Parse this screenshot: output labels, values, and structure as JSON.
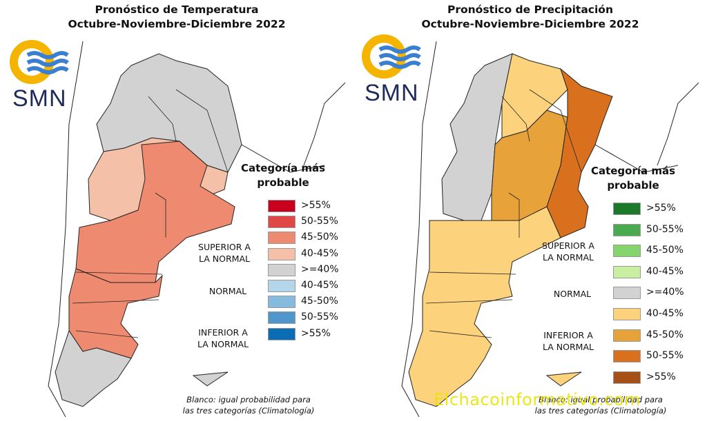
{
  "panels": [
    {
      "title_line1": "Pronóstico de Temperatura",
      "title_line2": "Octubre-Noviembre-Diciembre 2022",
      "logo_text": "SMN",
      "legend_title_line1": "Categoría más",
      "legend_title_line2": "probable",
      "legend": [
        {
          "label": ">55%",
          "color": "#c8001e"
        },
        {
          "label": "50-55%",
          "color": "#e04848"
        },
        {
          "label": "45-50%",
          "color": "#ee8a70"
        },
        {
          "label": "40-45%",
          "color": "#f5c0a8"
        },
        {
          "label": ">=40%",
          "color": "#d2d2d2"
        },
        {
          "label": "40-45%",
          "color": "#b3d6ea"
        },
        {
          "label": "45-50%",
          "color": "#86bbdd"
        },
        {
          "label": "50-55%",
          "color": "#4f96cc"
        },
        {
          "label": ">55%",
          "color": "#0b6db5"
        }
      ],
      "category_upper_line1": "SUPERIOR A",
      "category_upper_line2": "LA NORMAL",
      "category_normal": "NORMAL",
      "category_lower_line1": "INFERIOR A",
      "category_lower_line2": "LA NORMAL",
      "note_line1": "Blanco: igual probabilidad para",
      "note_line2": "las tres categorías (Climatología)",
      "map_colors": {
        "north": "#d2d2d2",
        "center": "#ee8a70",
        "light": "#f5c0a8",
        "south": "#d2d2d2"
      }
    },
    {
      "title_line1": "Pronóstico de Precipitación",
      "title_line2": "Octubre-Noviembre-Diciembre 2022",
      "logo_text": "SMN",
      "legend_title_line1": "Categoría más",
      "legend_title_line2": "probable",
      "legend": [
        {
          "label": ">55%",
          "color": "#1a7a2a"
        },
        {
          "label": "50-55%",
          "color": "#4aab4e"
        },
        {
          "label": "45-50%",
          "color": "#86d46c"
        },
        {
          "label": "40-45%",
          "color": "#c8f0a0"
        },
        {
          "label": ">=40%",
          "color": "#d2d2d2"
        },
        {
          "label": "40-45%",
          "color": "#fcd27c"
        },
        {
          "label": "45-50%",
          "color": "#e8a23a"
        },
        {
          "label": "50-55%",
          "color": "#d8701e"
        },
        {
          "label": ">55%",
          "color": "#a65018"
        }
      ],
      "category_upper_line1": "SUPERIOR A",
      "category_upper_line2": "LA NORMAL",
      "category_normal": "NORMAL",
      "category_lower_line1": "INFERIOR A",
      "category_lower_line2": "LA NORMAL",
      "note_line1": "Blanco: igual probabilidad para",
      "note_line2": "las tres categorías (Climatología)",
      "map_colors": {
        "west": "#d2d2d2",
        "patagonia": "#fcd27c",
        "center": "#e8a23a",
        "east": "#d8701e"
      }
    }
  ],
  "watermark": "Elchacoinformativo.com"
}
